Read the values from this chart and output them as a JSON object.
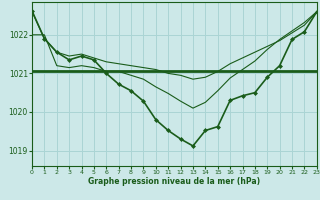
{
  "title": "Graphe pression niveau de la mer (hPa)",
  "bg_color": "#cce8e8",
  "grid_color": "#aad4d4",
  "line_color": "#1a5c1a",
  "xlim": [
    0,
    23
  ],
  "ylim": [
    1018.6,
    1022.85
  ],
  "yticks": [
    1019,
    1020,
    1021,
    1022
  ],
  "xticks": [
    0,
    1,
    2,
    3,
    4,
    5,
    6,
    7,
    8,
    9,
    10,
    11,
    12,
    13,
    14,
    15,
    16,
    17,
    18,
    19,
    20,
    21,
    22,
    23
  ],
  "line1_x": [
    0,
    1,
    2,
    3,
    4,
    5,
    6,
    7,
    8,
    9,
    10,
    11,
    12,
    13,
    14,
    15,
    16,
    17,
    18,
    19,
    20,
    21,
    22,
    23
  ],
  "line1_y": [
    1022.6,
    1021.9,
    1021.55,
    1021.45,
    1021.5,
    1021.4,
    1021.3,
    1021.25,
    1021.2,
    1021.15,
    1021.1,
    1021.0,
    1020.95,
    1020.85,
    1020.9,
    1021.05,
    1021.25,
    1021.4,
    1021.55,
    1021.7,
    1021.85,
    1022.05,
    1022.25,
    1022.6
  ],
  "line2_x": [
    0,
    23
  ],
  "line2_y": [
    1021.05,
    1021.05
  ],
  "line3_x": [
    0,
    1,
    2,
    3,
    4,
    5,
    6,
    7,
    8,
    9,
    10,
    11,
    12,
    13,
    14,
    15,
    16,
    17,
    18,
    19,
    20,
    21,
    22,
    23
  ],
  "line3_y": [
    1022.62,
    1021.9,
    1021.55,
    1021.35,
    1021.45,
    1021.35,
    1021.0,
    1020.72,
    1020.55,
    1020.28,
    1019.8,
    1019.52,
    1019.3,
    1019.12,
    1019.52,
    1019.62,
    1020.3,
    1020.42,
    1020.5,
    1020.9,
    1021.2,
    1021.88,
    1022.08,
    1022.6
  ],
  "line4_x": [
    0,
    1,
    2,
    3,
    4,
    5,
    6,
    7,
    8,
    9,
    10,
    11,
    12,
    13,
    14,
    15,
    16,
    17,
    18,
    19,
    20,
    21,
    22,
    23
  ],
  "line4_y": [
    1022.0,
    1022.0,
    1021.2,
    1021.15,
    1021.2,
    1021.15,
    1021.05,
    1021.05,
    1020.95,
    1020.85,
    1020.65,
    1020.48,
    1020.28,
    1020.1,
    1020.25,
    1020.55,
    1020.88,
    1021.1,
    1021.32,
    1021.62,
    1021.88,
    1022.1,
    1022.32,
    1022.6
  ]
}
